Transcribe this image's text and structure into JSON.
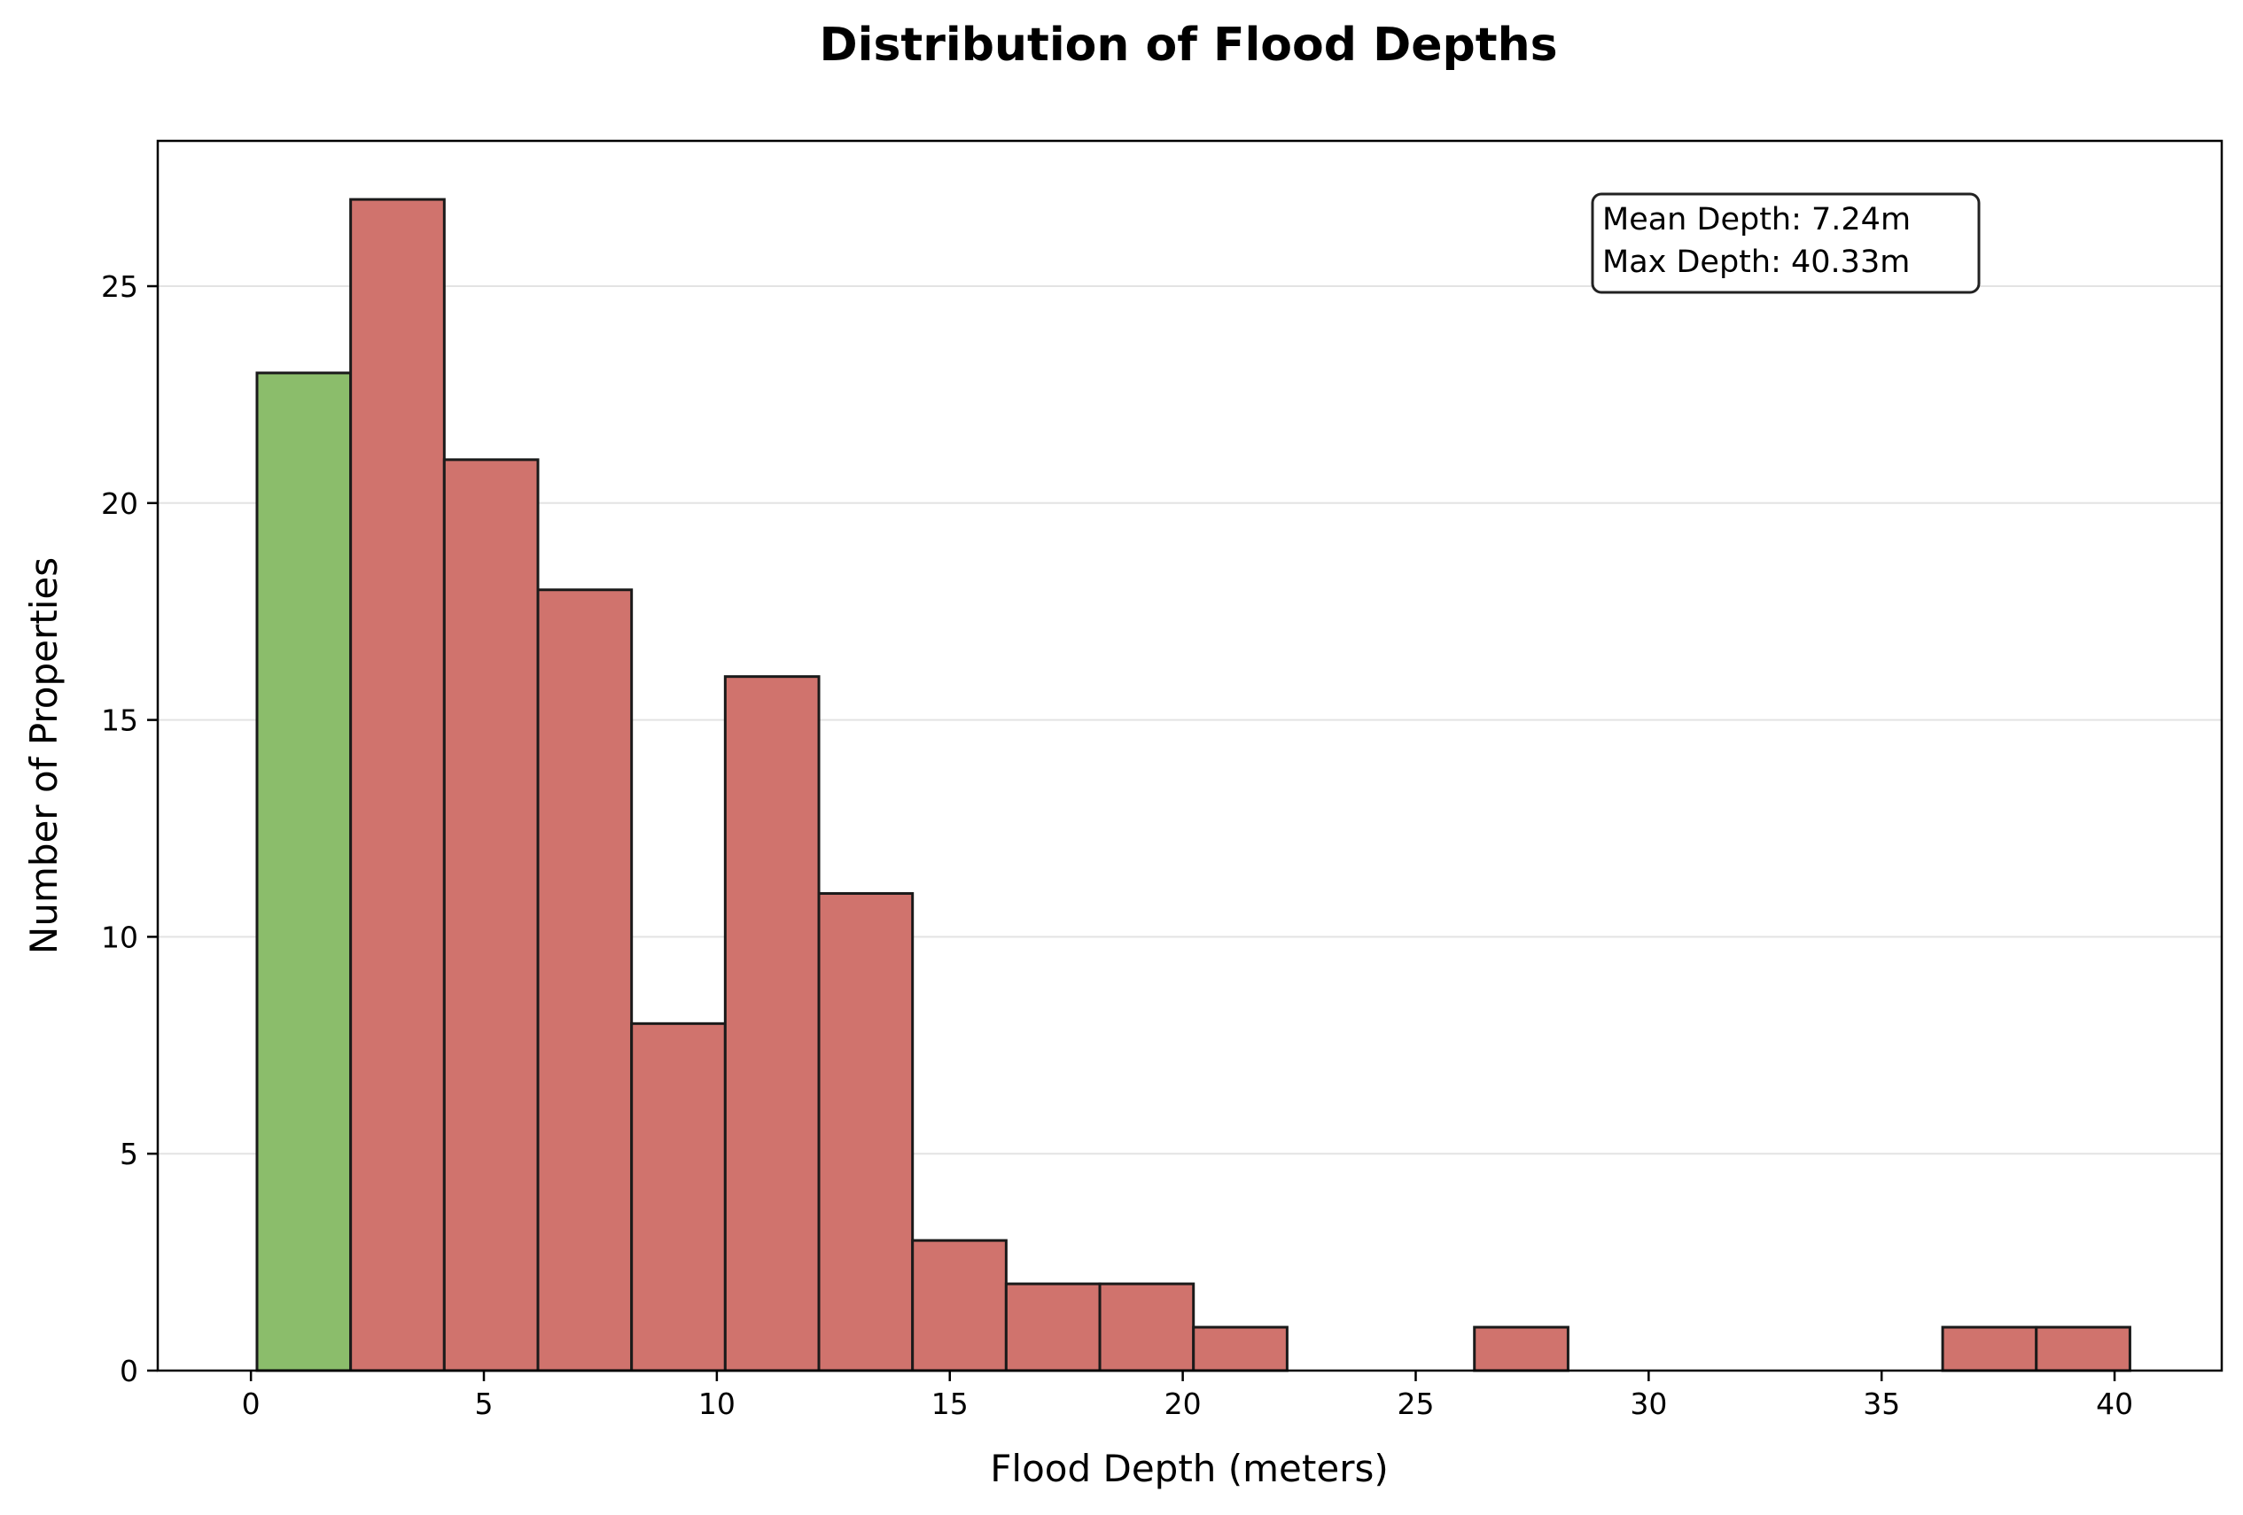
{
  "chart_data": {
    "type": "bar",
    "title": "Distribution of Flood Depths",
    "xlabel": "Flood Depth (meters)",
    "ylabel": "Number of Properties",
    "xlim": [
      -2.0,
      42.3
    ],
    "ylim": [
      0,
      28.35
    ],
    "xticks": [
      0,
      5,
      10,
      15,
      20,
      25,
      30,
      35,
      40
    ],
    "yticks": [
      0,
      5,
      10,
      15,
      20,
      25
    ],
    "grid": "y",
    "bins": [
      {
        "x0": 0.13,
        "x1": 2.14,
        "count": 23
      },
      {
        "x0": 2.14,
        "x1": 4.15,
        "count": 27
      },
      {
        "x0": 4.15,
        "x1": 6.16,
        "count": 21
      },
      {
        "x0": 6.16,
        "x1": 8.17,
        "count": 18
      },
      {
        "x0": 8.17,
        "x1": 10.18,
        "count": 8
      },
      {
        "x0": 10.18,
        "x1": 12.19,
        "count": 16
      },
      {
        "x0": 12.19,
        "x1": 14.2,
        "count": 11
      },
      {
        "x0": 14.2,
        "x1": 16.21,
        "count": 3
      },
      {
        "x0": 16.21,
        "x1": 18.22,
        "count": 2
      },
      {
        "x0": 18.22,
        "x1": 20.23,
        "count": 2
      },
      {
        "x0": 20.23,
        "x1": 22.24,
        "count": 1
      },
      {
        "x0": 22.24,
        "x1": 24.25,
        "count": 0
      },
      {
        "x0": 24.25,
        "x1": 26.26,
        "count": 0
      },
      {
        "x0": 26.26,
        "x1": 28.27,
        "count": 1
      },
      {
        "x0": 28.27,
        "x1": 30.28,
        "count": 0
      },
      {
        "x0": 30.28,
        "x1": 32.29,
        "count": 0
      },
      {
        "x0": 32.29,
        "x1": 34.3,
        "count": 0
      },
      {
        "x0": 34.3,
        "x1": 36.31,
        "count": 0
      },
      {
        "x0": 36.31,
        "x1": 38.32,
        "count": 1
      },
      {
        "x0": 38.32,
        "x1": 40.33,
        "count": 1
      }
    ],
    "colors": {
      "highlight": "#8bbd6b",
      "default": "#d0736d",
      "edge": "#1a1a1a",
      "grid": "#e3e3e3"
    },
    "annotation": {
      "lines": [
        "Mean Depth: 7.24m",
        "Max Depth: 40.33m"
      ],
      "placement": "top-right"
    }
  }
}
